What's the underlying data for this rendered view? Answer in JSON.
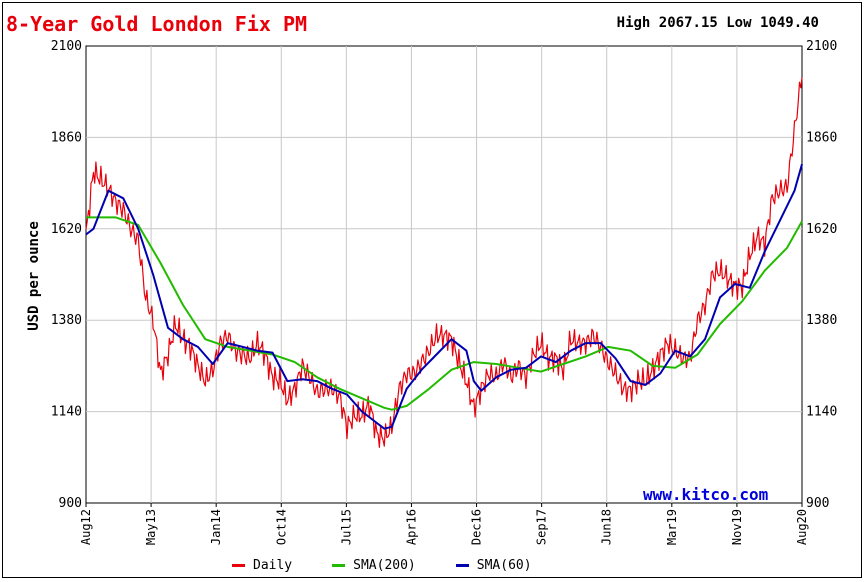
{
  "header": {
    "title": "8-Year Gold London Fix PM",
    "high_label": "High",
    "high_value": "2067.15",
    "low_label": "Low",
    "low_value": "1049.40"
  },
  "watermark": "www.kitco.com",
  "colors": {
    "daily": "#e8000b",
    "sma200": "#22bb00",
    "sma60": "#0000b0",
    "title": "#e8000b",
    "watermark": "#0000dd",
    "grid": "#c8c8c8"
  },
  "chart_data": {
    "type": "line",
    "title": "8-Year Gold London Fix PM",
    "ylabel": "USD per ounce",
    "xlabel": "",
    "ylim": [
      900,
      2100
    ],
    "yticks": [
      "2100",
      "1860",
      "1620",
      "1380",
      "1140",
      "900"
    ],
    "xticks": [
      "Aug12",
      "May13",
      "Jan14",
      "Oct14",
      "Jul15",
      "Apr16",
      "Dec16",
      "Sep17",
      "Jun18",
      "Mar19",
      "Nov19",
      "Aug20"
    ],
    "grid": true,
    "legend_position": "bottom",
    "x_range": [
      "2012-08",
      "2020-08"
    ],
    "series": [
      {
        "name": "Daily",
        "x": [
          "2012-08",
          "2012-09",
          "2012-10",
          "2012-11",
          "2012-12",
          "2013-01",
          "2013-02",
          "2013-03",
          "2013-04",
          "2013-05",
          "2013-06",
          "2013-07",
          "2013-08",
          "2013-09",
          "2013-10",
          "2013-11",
          "2013-12",
          "2014-01",
          "2014-02",
          "2014-03",
          "2014-04",
          "2014-05",
          "2014-06",
          "2014-07",
          "2014-08",
          "2014-09",
          "2014-10",
          "2014-11",
          "2014-12",
          "2015-01",
          "2015-02",
          "2015-03",
          "2015-04",
          "2015-05",
          "2015-06",
          "2015-07",
          "2015-08",
          "2015-09",
          "2015-10",
          "2015-11",
          "2015-12",
          "2016-01",
          "2016-02",
          "2016-03",
          "2016-04",
          "2016-05",
          "2016-06",
          "2016-07",
          "2016-08",
          "2016-09",
          "2016-10",
          "2016-11",
          "2016-12",
          "2017-01",
          "2017-02",
          "2017-03",
          "2017-04",
          "2017-05",
          "2017-06",
          "2017-07",
          "2017-08",
          "2017-09",
          "2017-10",
          "2017-11",
          "2017-12",
          "2018-01",
          "2018-02",
          "2018-03",
          "2018-04",
          "2018-05",
          "2018-06",
          "2018-07",
          "2018-08",
          "2018-09",
          "2018-10",
          "2018-11",
          "2018-12",
          "2019-01",
          "2019-02",
          "2019-03",
          "2019-04",
          "2019-05",
          "2019-06",
          "2019-07",
          "2019-08",
          "2019-09",
          "2019-10",
          "2019-11",
          "2019-12",
          "2020-01",
          "2020-02",
          "2020-03",
          "2020-04",
          "2020-05",
          "2020-06",
          "2020-07",
          "2020-08"
        ],
        "values": [
          1605,
          1770,
          1750,
          1725,
          1690,
          1670,
          1620,
          1590,
          1440,
          1380,
          1240,
          1290,
          1370,
          1330,
          1310,
          1260,
          1220,
          1250,
          1320,
          1340,
          1300,
          1290,
          1280,
          1320,
          1290,
          1230,
          1220,
          1170,
          1200,
          1260,
          1230,
          1190,
          1200,
          1200,
          1180,
          1100,
          1130,
          1130,
          1160,
          1080,
          1070,
          1100,
          1200,
          1240,
          1240,
          1270,
          1300,
          1340,
          1340,
          1330,
          1270,
          1220,
          1150,
          1200,
          1240,
          1230,
          1270,
          1230,
          1260,
          1230,
          1290,
          1320,
          1280,
          1280,
          1250,
          1330,
          1320,
          1320,
          1340,
          1310,
          1270,
          1240,
          1200,
          1195,
          1220,
          1220,
          1250,
          1290,
          1320,
          1300,
          1280,
          1280,
          1380,
          1420,
          1500,
          1510,
          1490,
          1470,
          1470,
          1550,
          1600,
          1580,
          1700,
          1720,
          1730,
          1880,
          2030
        ]
      },
      {
        "name": "SMA(200)",
        "x": [
          "2012-08",
          "2012-12",
          "2013-03",
          "2013-06",
          "2013-09",
          "2013-12",
          "2014-03",
          "2014-06",
          "2014-09",
          "2014-12",
          "2015-03",
          "2015-06",
          "2015-09",
          "2015-12",
          "2016-01",
          "2016-03",
          "2016-06",
          "2016-09",
          "2016-12",
          "2017-03",
          "2017-06",
          "2017-09",
          "2017-12",
          "2018-03",
          "2018-06",
          "2018-09",
          "2018-12",
          "2019-03",
          "2019-06",
          "2019-09",
          "2019-12",
          "2020-03",
          "2020-06",
          "2020-08"
        ],
        "values": [
          1650,
          1650,
          1630,
          1530,
          1420,
          1330,
          1310,
          1300,
          1290,
          1270,
          1230,
          1200,
          1175,
          1150,
          1145,
          1155,
          1200,
          1250,
          1270,
          1265,
          1255,
          1245,
          1265,
          1285,
          1310,
          1300,
          1260,
          1255,
          1290,
          1370,
          1430,
          1510,
          1570,
          1640
        ]
      },
      {
        "name": "SMA(60)",
        "x": [
          "2012-08",
          "2012-09",
          "2012-11",
          "2013-01",
          "2013-03",
          "2013-05",
          "2013-07",
          "2013-09",
          "2013-11",
          "2014-01",
          "2014-03",
          "2014-05",
          "2014-07",
          "2014-09",
          "2014-11",
          "2015-01",
          "2015-03",
          "2015-05",
          "2015-07",
          "2015-09",
          "2015-11",
          "2015-12",
          "2016-01",
          "2016-03",
          "2016-05",
          "2016-07",
          "2016-09",
          "2016-11",
          "2016-12",
          "2017-01",
          "2017-03",
          "2017-05",
          "2017-07",
          "2017-09",
          "2017-11",
          "2018-01",
          "2018-03",
          "2018-05",
          "2018-07",
          "2018-09",
          "2018-11",
          "2019-01",
          "2019-03",
          "2019-05",
          "2019-07",
          "2019-09",
          "2019-11",
          "2020-01",
          "2020-03",
          "2020-05",
          "2020-07",
          "2020-08"
        ],
        "values": [
          1605,
          1620,
          1720,
          1700,
          1620,
          1500,
          1360,
          1330,
          1310,
          1265,
          1320,
          1310,
          1300,
          1295,
          1220,
          1225,
          1220,
          1200,
          1185,
          1140,
          1110,
          1095,
          1100,
          1200,
          1250,
          1290,
          1330,
          1300,
          1220,
          1195,
          1230,
          1250,
          1255,
          1285,
          1270,
          1300,
          1320,
          1320,
          1280,
          1220,
          1210,
          1240,
          1300,
          1285,
          1330,
          1440,
          1475,
          1465,
          1560,
          1640,
          1720,
          1790
        ]
      }
    ]
  }
}
